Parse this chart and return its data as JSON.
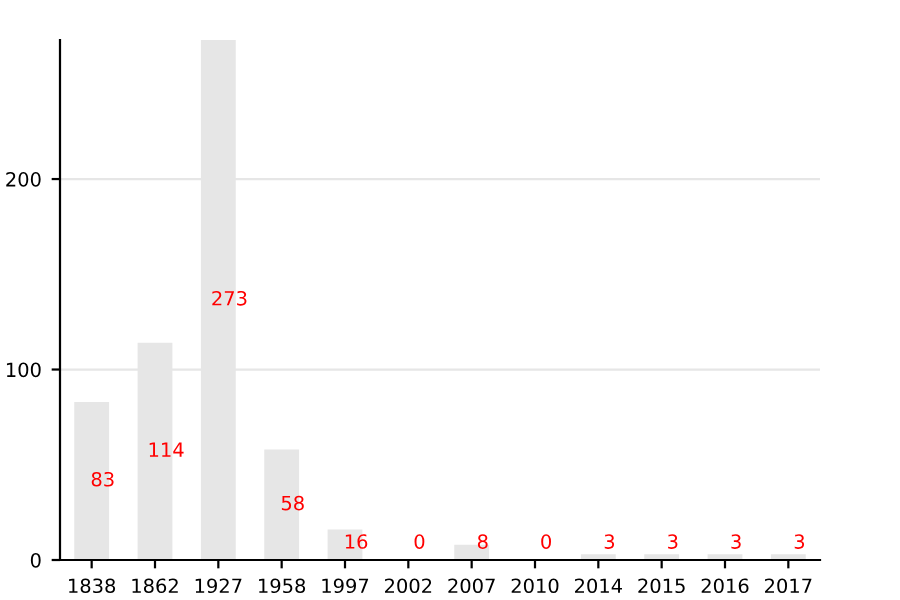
{
  "chart_data": {
    "type": "bar",
    "categories": [
      "1838",
      "1862",
      "1927",
      "1958",
      "1997",
      "2002",
      "2007",
      "2010",
      "2014",
      "2015",
      "2016",
      "2017"
    ],
    "values": [
      83,
      114,
      273,
      58,
      16,
      0,
      8,
      0,
      3,
      3,
      3,
      3
    ],
    "color": "#e6e6e6",
    "ylim": [
      0,
      273
    ],
    "yticks": [
      0,
      100,
      200
    ],
    "grid": "y",
    "data_labels": true
  }
}
